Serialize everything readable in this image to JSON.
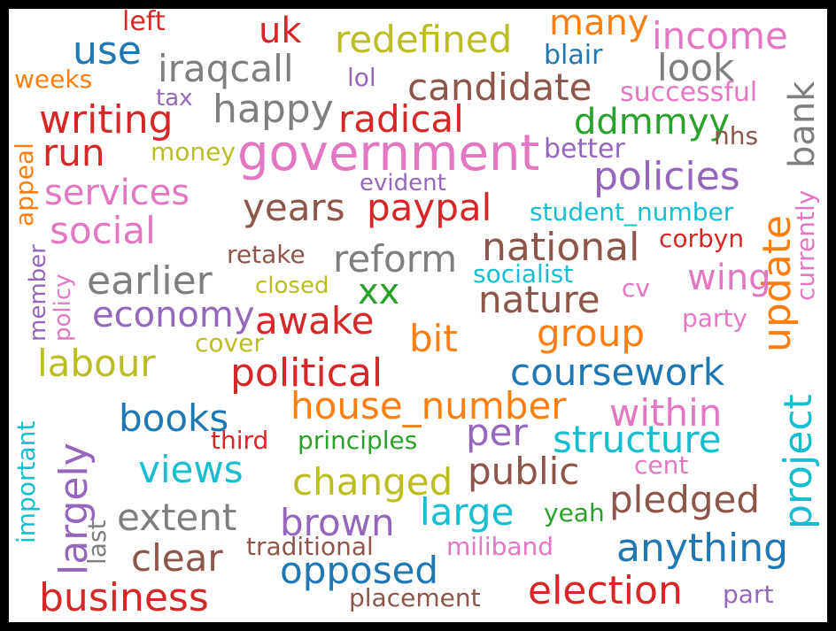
{
  "palette": {
    "blue": "#1f77b4",
    "orange": "#ff7f0e",
    "green": "#2ca02c",
    "red": "#d62728",
    "purple": "#9467bd",
    "brown": "#8c564b",
    "pink": "#e377c2",
    "gray": "#7f7f7f",
    "olive": "#bcbd22",
    "cyan": "#17becf"
  },
  "words": [
    {
      "text": "left",
      "color": "red"
    },
    {
      "text": "uk",
      "color": "red"
    },
    {
      "text": "many",
      "color": "orange"
    },
    {
      "text": "income",
      "color": "pink"
    },
    {
      "text": "use",
      "color": "blue"
    },
    {
      "text": "redefined",
      "color": "olive"
    },
    {
      "text": "blair",
      "color": "blue"
    },
    {
      "text": "look",
      "color": "gray"
    },
    {
      "text": "weeks",
      "color": "orange"
    },
    {
      "text": "iraqcall",
      "color": "gray"
    },
    {
      "text": "lol",
      "color": "purple"
    },
    {
      "text": "candidate",
      "color": "brown"
    },
    {
      "text": "bank",
      "color": "gray"
    },
    {
      "text": "tax",
      "color": "purple"
    },
    {
      "text": "successful",
      "color": "pink"
    },
    {
      "text": "writing",
      "color": "red"
    },
    {
      "text": "happy",
      "color": "gray"
    },
    {
      "text": "radical",
      "color": "red"
    },
    {
      "text": "ddmmyy",
      "color": "green"
    },
    {
      "text": "nhs",
      "color": "brown"
    },
    {
      "text": "run",
      "color": "red"
    },
    {
      "text": "government",
      "color": "pink"
    },
    {
      "text": "money",
      "color": "olive"
    },
    {
      "text": "better",
      "color": "purple"
    },
    {
      "text": "appeal",
      "color": "orange"
    },
    {
      "text": "currently",
      "color": "pink"
    },
    {
      "text": "services",
      "color": "pink"
    },
    {
      "text": "evident",
      "color": "purple"
    },
    {
      "text": "policies",
      "color": "purple"
    },
    {
      "text": "years",
      "color": "brown"
    },
    {
      "text": "paypal",
      "color": "red"
    },
    {
      "text": "student_number",
      "color": "cyan"
    },
    {
      "text": "social",
      "color": "pink"
    },
    {
      "text": "update",
      "color": "orange"
    },
    {
      "text": "national",
      "color": "brown"
    },
    {
      "text": "corbyn",
      "color": "red"
    },
    {
      "text": "retake",
      "color": "brown"
    },
    {
      "text": "reform",
      "color": "gray"
    },
    {
      "text": "member",
      "color": "purple"
    },
    {
      "text": "policy",
      "color": "pink"
    },
    {
      "text": "earlier",
      "color": "gray"
    },
    {
      "text": "socialist",
      "color": "cyan"
    },
    {
      "text": "wing",
      "color": "pink"
    },
    {
      "text": "closed",
      "color": "olive"
    },
    {
      "text": "xx",
      "color": "green"
    },
    {
      "text": "cv",
      "color": "pink"
    },
    {
      "text": "nature",
      "color": "brown"
    },
    {
      "text": "economy",
      "color": "purple"
    },
    {
      "text": "awake",
      "color": "red"
    },
    {
      "text": "party",
      "color": "pink"
    },
    {
      "text": "group",
      "color": "orange"
    },
    {
      "text": "bit",
      "color": "orange"
    },
    {
      "text": "cover",
      "color": "olive"
    },
    {
      "text": "labour",
      "color": "olive"
    },
    {
      "text": "political",
      "color": "red"
    },
    {
      "text": "coursework",
      "color": "blue"
    },
    {
      "text": "project",
      "color": "cyan"
    },
    {
      "text": "house_number",
      "color": "orange"
    },
    {
      "text": "within",
      "color": "pink"
    },
    {
      "text": "books",
      "color": "blue"
    },
    {
      "text": "important",
      "color": "cyan"
    },
    {
      "text": "largely",
      "color": "purple"
    },
    {
      "text": "per",
      "color": "purple"
    },
    {
      "text": "third",
      "color": "red"
    },
    {
      "text": "principles",
      "color": "green"
    },
    {
      "text": "structure",
      "color": "cyan"
    },
    {
      "text": "views",
      "color": "cyan"
    },
    {
      "text": "cent",
      "color": "pink"
    },
    {
      "text": "public",
      "color": "brown"
    },
    {
      "text": "changed",
      "color": "olive"
    },
    {
      "text": "pledged",
      "color": "brown"
    },
    {
      "text": "large",
      "color": "cyan"
    },
    {
      "text": "yeah",
      "color": "green"
    },
    {
      "text": "extent",
      "color": "gray"
    },
    {
      "text": "brown",
      "color": "purple"
    },
    {
      "text": "last",
      "color": "gray"
    },
    {
      "text": "anything",
      "color": "blue"
    },
    {
      "text": "traditional",
      "color": "brown"
    },
    {
      "text": "miliband",
      "color": "pink"
    },
    {
      "text": "clear",
      "color": "brown"
    },
    {
      "text": "opposed",
      "color": "blue"
    },
    {
      "text": "business",
      "color": "red"
    },
    {
      "text": "election",
      "color": "red"
    },
    {
      "text": "part",
      "color": "purple"
    },
    {
      "text": "placement",
      "color": "brown"
    }
  ]
}
